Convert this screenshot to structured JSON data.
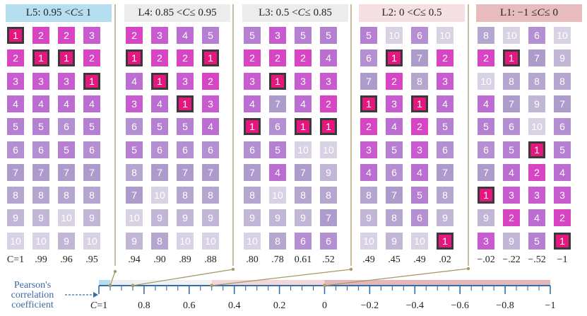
{
  "colors": {
    "rank_1": "#e5177e",
    "rank_2": "#d744c4",
    "rank_3": "#c85bd0",
    "rank_4": "#bc6dd2",
    "rank_5": "#b57fd2",
    "rank_6": "#b48fd2",
    "rank_7": "#ad9bcc",
    "rank_8": "#b5a6cf",
    "rank_9": "#c2b6d6",
    "rank_10": "#d9d1e4",
    "axis": "#2f6fb3",
    "leader": "#a89a68",
    "band_l5": "#b8dcea",
    "band_l4": "#f0f0f0",
    "band_l3": "#f2f2f2",
    "band_l2": "#f4d8dc",
    "band_l1": "#e8b8bc"
  },
  "groups": [
    {
      "id": "L5",
      "label_pre": "L5: 0.95 < ",
      "label_var": "C",
      "label_post": " ≤ 1",
      "header_color": "#b5dff0",
      "columns": [
        {
          "corr": "C=1",
          "ranks": [
            1,
            2,
            3,
            4,
            5,
            6,
            7,
            8,
            9,
            10
          ]
        },
        {
          "corr": ".99",
          "ranks": [
            2,
            1,
            3,
            4,
            5,
            6,
            7,
            8,
            9,
            10
          ]
        },
        {
          "corr": ".96",
          "ranks": [
            2,
            1,
            3,
            4,
            6,
            5,
            7,
            8,
            10,
            9
          ]
        },
        {
          "corr": ".95",
          "ranks": [
            3,
            2,
            1,
            4,
            5,
            6,
            7,
            8,
            9,
            10
          ]
        }
      ]
    },
    {
      "id": "L4",
      "label_pre": "L4: 0.85 < ",
      "label_var": "C",
      "label_post": " ≤ 0.95",
      "header_color": "#ececec",
      "columns": [
        {
          "corr": ".94",
          "ranks": [
            2,
            1,
            4,
            3,
            6,
            5,
            8,
            7,
            10,
            9
          ]
        },
        {
          "corr": ".90",
          "ranks": [
            3,
            2,
            1,
            4,
            5,
            6,
            7,
            10,
            9,
            8
          ]
        },
        {
          "corr": ".89",
          "ranks": [
            4,
            2,
            3,
            1,
            5,
            6,
            7,
            8,
            9,
            10
          ]
        },
        {
          "corr": ".88",
          "ranks": [
            5,
            1,
            2,
            3,
            4,
            6,
            7,
            8,
            9,
            10
          ]
        }
      ]
    },
    {
      "id": "L3",
      "label_pre": "L3: 0.5 < ",
      "label_var": "C",
      "label_post": " ≤ 0.85",
      "header_color": "#ececec",
      "columns": [
        {
          "corr": ".80",
          "ranks": [
            5,
            2,
            3,
            4,
            1,
            6,
            7,
            8,
            9,
            10
          ]
        },
        {
          "corr": ".78",
          "ranks": [
            3,
            2,
            1,
            7,
            6,
            5,
            4,
            10,
            9,
            8
          ]
        },
        {
          "corr": "0.61",
          "ranks": [
            5,
            2,
            3,
            4,
            1,
            10,
            7,
            8,
            9,
            6
          ]
        },
        {
          "corr": ".52",
          "ranks": [
            5,
            4,
            3,
            2,
            1,
            10,
            9,
            8,
            7,
            6
          ]
        }
      ]
    },
    {
      "id": "L2",
      "label_pre": "L2: 0 < ",
      "label_var": "C",
      "label_post": " ≤ 0.5",
      "header_color": "#f6dfe2",
      "columns": [
        {
          "corr": ".49",
          "ranks": [
            5,
            6,
            7,
            1,
            2,
            3,
            4,
            8,
            9,
            10
          ]
        },
        {
          "corr": ".45",
          "ranks": [
            10,
            1,
            2,
            3,
            4,
            5,
            6,
            7,
            8,
            9
          ]
        },
        {
          "corr": ".49",
          "ranks": [
            6,
            7,
            8,
            1,
            2,
            3,
            4,
            5,
            6,
            10
          ]
        },
        {
          "corr": ".02",
          "ranks": [
            10,
            2,
            3,
            4,
            5,
            6,
            7,
            8,
            9,
            1
          ]
        }
      ]
    },
    {
      "id": "L1",
      "label_pre": "L1: −1 ≤ ",
      "label_var": "C",
      "label_post": " ≤ 0",
      "header_color": "#e8bcbf",
      "columns": [
        {
          "corr": "−.02",
          "ranks": [
            8,
            2,
            10,
            4,
            5,
            6,
            7,
            1,
            9,
            3
          ]
        },
        {
          "corr": "−.22",
          "ranks": [
            10,
            1,
            8,
            7,
            6,
            5,
            4,
            3,
            2,
            9
          ]
        },
        {
          "corr": "−.52",
          "ranks": [
            6,
            7,
            8,
            9,
            10,
            1,
            2,
            3,
            4,
            5
          ]
        },
        {
          "corr": "−1",
          "ranks": [
            10,
            9,
            8,
            7,
            6,
            5,
            4,
            3,
            2,
            1
          ]
        }
      ]
    }
  ],
  "axis": {
    "title_line1": "Pearson's",
    "title_line2": "correlation",
    "title_line3": "coefficient",
    "ticks": [
      {
        "value": 1,
        "label": "C=1"
      },
      {
        "value": 0.8,
        "label": "0.8"
      },
      {
        "value": 0.6,
        "label": "0.6"
      },
      {
        "value": 0.4,
        "label": "0.4"
      },
      {
        "value": 0.2,
        "label": "0.2"
      },
      {
        "value": 0,
        "label": "0"
      },
      {
        "value": -0.2,
        "label": "−0.2"
      },
      {
        "value": -0.4,
        "label": "−0.4"
      },
      {
        "value": -0.6,
        "label": "−0.6"
      },
      {
        "value": -0.8,
        "label": "−0.8"
      },
      {
        "value": -1,
        "label": "−1"
      }
    ],
    "bands": [
      {
        "from": 1,
        "to": 0.95,
        "color": "#b8dcea"
      },
      {
        "from": 0.95,
        "to": 0.85,
        "color": "#eeeeee"
      },
      {
        "from": 0.85,
        "to": 0.5,
        "color": "#f1f1f1"
      },
      {
        "from": 0.5,
        "to": 0,
        "color": "#f4d6da"
      },
      {
        "from": 0,
        "to": -1,
        "color": "#e6b7ba"
      }
    ],
    "markers": [
      0.95,
      0.85,
      0.5,
      0
    ]
  }
}
